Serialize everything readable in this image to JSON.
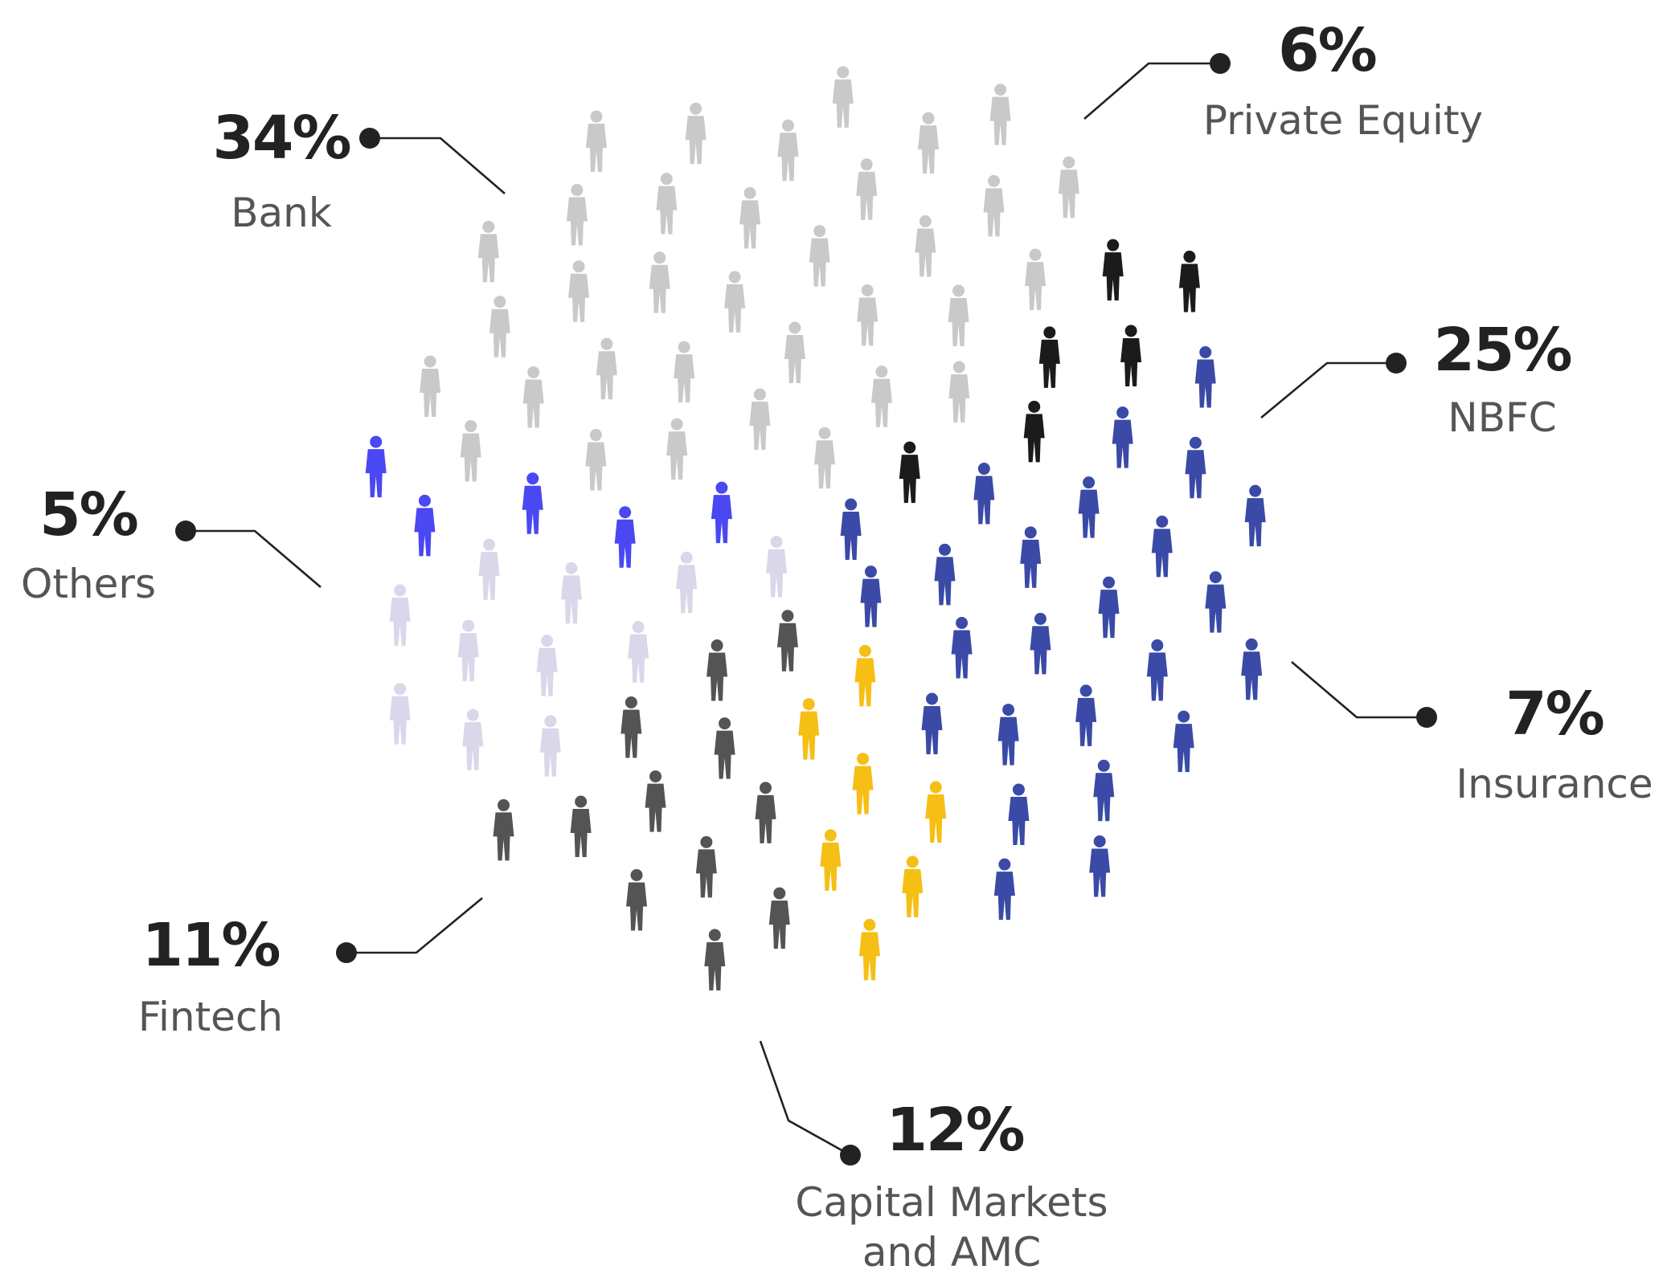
{
  "chart_data": {
    "type": "pictogram",
    "categories": [
      "Bank",
      "Private Equity",
      "NBFC",
      "Insurance",
      "Capital Markets and AMC",
      "Fintech",
      "Others"
    ],
    "values": [
      34,
      6,
      25,
      7,
      12,
      11,
      5
    ],
    "value_labels": [
      "34%",
      "6%",
      "25%",
      "7%",
      "12%",
      "11%",
      "5%"
    ],
    "colors": [
      "#c9c9c9",
      "#1b1b1b",
      "#3a4aa6",
      "#f6bf16",
      "#545454",
      "#dad7ea",
      "#4a48f2"
    ]
  }
}
